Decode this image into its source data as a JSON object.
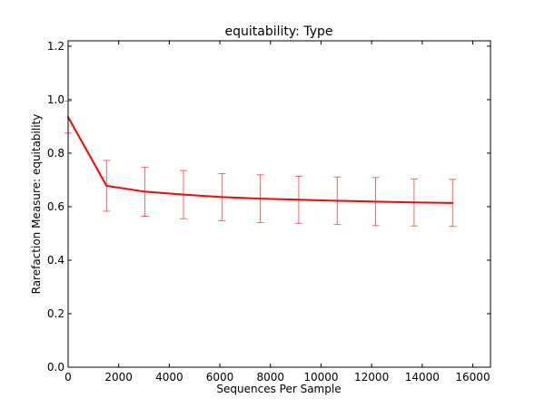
{
  "chart_data": {
    "type": "line",
    "title": "equitability: Type",
    "xlabel": "Sequences Per Sample",
    "ylabel": "Rarefaction Measure: equitability",
    "xlim": [
      0,
      16700
    ],
    "ylim": [
      0.0,
      1.22
    ],
    "xticks": [
      0,
      2000,
      4000,
      6000,
      8000,
      10000,
      12000,
      14000,
      16000
    ],
    "yticks": [
      0.0,
      0.2,
      0.4,
      0.6,
      0.8,
      1.0,
      1.2
    ],
    "xtick_labels": [
      "0",
      "2000",
      "4000",
      "6000",
      "8000",
      "10000",
      "12000",
      "14000",
      "16000"
    ],
    "ytick_labels": [
      "0.0",
      "0.2",
      "0.4",
      "0.6",
      "0.8",
      "1.0",
      "1.2"
    ],
    "grid": false,
    "color": "#ff0000",
    "series": [
      {
        "x": [
          0,
          1520,
          3040,
          4560,
          6080,
          7600,
          9120,
          10640,
          12160,
          13680,
          15200
        ],
        "y": [
          0.935,
          0.678,
          0.656,
          0.645,
          0.636,
          0.63,
          0.626,
          0.622,
          0.619,
          0.616,
          0.614
        ],
        "err": [
          0.06,
          0.095,
          0.092,
          0.09,
          0.088,
          0.089,
          0.088,
          0.089,
          0.09,
          0.088,
          0.088
        ]
      }
    ]
  }
}
